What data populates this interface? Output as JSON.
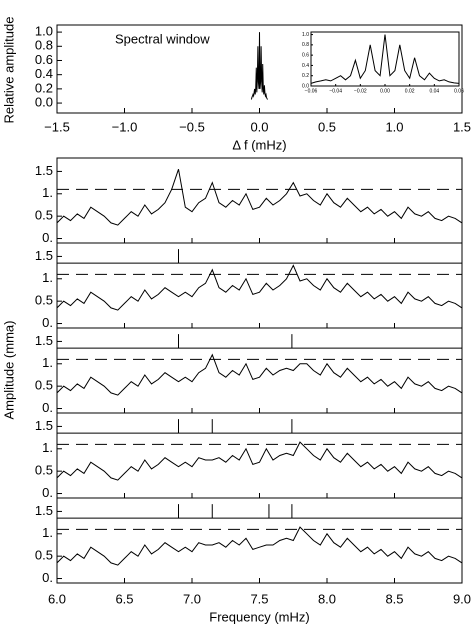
{
  "chart_data": [
    {
      "type": "line",
      "annotation": "Spectral window",
      "xlabel": "Δ f (mHz)",
      "ylabel": "Relative amplitude",
      "x": [
        -0.06,
        -0.056,
        -0.052,
        -0.048,
        -0.044,
        -0.04,
        -0.036,
        -0.032,
        -0.028,
        -0.024,
        -0.02,
        -0.016,
        -0.012,
        -0.008,
        -0.004,
        0,
        0.004,
        0.008,
        0.012,
        0.016,
        0.02,
        0.024,
        0.028,
        0.032,
        0.036,
        0.04,
        0.044,
        0.048,
        0.052,
        0.056,
        0.06
      ],
      "values": [
        0.05,
        0.08,
        0.1,
        0.12,
        0.1,
        0.15,
        0.2,
        0.12,
        0.2,
        0.5,
        0.15,
        0.3,
        0.8,
        0.3,
        0.2,
        1.0,
        0.2,
        0.3,
        0.8,
        0.3,
        0.15,
        0.55,
        0.2,
        0.12,
        0.25,
        0.15,
        0.1,
        0.12,
        0.08,
        0.06,
        0.05
      ],
      "xlim": [
        -1.5,
        1.5
      ],
      "xticks": [
        {
          "value": -1.5,
          "label": "−1.5"
        },
        {
          "value": -1,
          "label": "−1.0"
        },
        {
          "value": -0.5,
          "label": "−0.5"
        },
        {
          "value": 0,
          "label": "0.0"
        },
        0.5,
        {
          "value": 1,
          "label": "1.0"
        },
        1.5
      ],
      "ylim": [
        -0.14,
        1.1
      ],
      "yticks": [
        {
          "value": 0,
          "label": "0.0"
        },
        0.2,
        0.4,
        0.6,
        0.8,
        {
          "value": 1,
          "label": "1.0"
        }
      ],
      "inset": {
        "xlim": [
          -0.06,
          0.06
        ],
        "xticks": [
          {
            "value": -0.06,
            "label": "−0.06"
          },
          {
            "value": -0.04,
            "label": "−0.04"
          },
          {
            "value": -0.02,
            "label": "−0.02"
          },
          {
            "value": 0,
            "label": "0.00"
          },
          0.02,
          0.04,
          0.06
        ],
        "ylim": [
          0,
          1.05
        ],
        "yticks": [
          {
            "value": 0,
            "label": "0.0"
          },
          0.2,
          0.4,
          0.6,
          0.8,
          {
            "value": 1,
            "label": "1.0"
          }
        ]
      }
    },
    {
      "type": "line",
      "xlabel": "Frequency (mHz)",
      "ylabel": "Amplitude (mma)",
      "x": [
        6.0,
        6.05,
        6.1,
        6.15,
        6.2,
        6.25,
        6.3,
        6.35,
        6.4,
        6.45,
        6.5,
        6.55,
        6.6,
        6.65,
        6.7,
        6.75,
        6.8,
        6.85,
        6.9,
        6.95,
        7.0,
        7.05,
        7.1,
        7.15,
        7.2,
        7.25,
        7.3,
        7.35,
        7.4,
        7.45,
        7.5,
        7.55,
        7.6,
        7.65,
        7.7,
        7.75,
        7.8,
        7.85,
        7.9,
        7.95,
        8.0,
        8.05,
        8.1,
        8.15,
        8.2,
        8.25,
        8.3,
        8.35,
        8.4,
        8.45,
        8.5,
        8.55,
        8.6,
        8.65,
        8.7,
        8.75,
        8.8,
        8.85,
        8.9,
        8.95,
        9.0
      ],
      "xlim": [
        6,
        9
      ],
      "xticks": [
        {
          "value": 6,
          "label": "6.0"
        },
        6.5,
        {
          "value": 7,
          "label": "7.0"
        },
        7.5,
        {
          "value": 8,
          "label": "8.0"
        },
        8.5,
        {
          "value": 9,
          "label": "9.0"
        }
      ],
      "ylim": [
        -0.1,
        1.8
      ],
      "yticks": [
        {
          "value": 0,
          "label": "0."
        },
        0.5,
        {
          "value": 1,
          "label": "1."
        },
        1.5
      ],
      "threshold": 1.1,
      "marker_line": 1.35,
      "panels": [
        {
          "removed": [],
          "values": [
            0.35,
            0.5,
            0.4,
            0.55,
            0.45,
            0.7,
            0.6,
            0.5,
            0.35,
            0.3,
            0.45,
            0.6,
            0.5,
            0.75,
            0.55,
            0.65,
            0.8,
            1.1,
            1.55,
            0.7,
            0.6,
            0.8,
            0.9,
            1.25,
            0.8,
            0.7,
            0.85,
            0.75,
            1.0,
            0.65,
            0.7,
            0.9,
            0.75,
            0.85,
            1.0,
            1.25,
            0.95,
            1.0,
            0.85,
            0.75,
            1.0,
            0.8,
            0.7,
            0.9,
            0.75,
            0.6,
            0.7,
            0.55,
            0.65,
            0.5,
            0.6,
            0.45,
            0.7,
            0.55,
            0.5,
            0.6,
            0.45,
            0.4,
            0.5,
            0.45,
            0.35
          ]
        },
        {
          "removed": [
            6.9
          ],
          "values": [
            0.35,
            0.5,
            0.4,
            0.55,
            0.45,
            0.7,
            0.6,
            0.5,
            0.35,
            0.3,
            0.45,
            0.6,
            0.5,
            0.75,
            0.55,
            0.65,
            0.8,
            0.7,
            0.6,
            0.7,
            0.6,
            0.8,
            0.9,
            1.2,
            0.8,
            0.7,
            0.85,
            0.75,
            1.0,
            0.65,
            0.7,
            0.9,
            0.75,
            0.85,
            1.0,
            1.3,
            0.95,
            1.0,
            0.85,
            0.75,
            1.0,
            0.8,
            0.7,
            0.9,
            0.75,
            0.6,
            0.7,
            0.55,
            0.65,
            0.5,
            0.6,
            0.45,
            0.7,
            0.55,
            0.5,
            0.6,
            0.45,
            0.4,
            0.5,
            0.45,
            0.35
          ]
        },
        {
          "removed": [
            6.9,
            7.74
          ],
          "values": [
            0.35,
            0.5,
            0.4,
            0.55,
            0.45,
            0.7,
            0.6,
            0.5,
            0.35,
            0.3,
            0.45,
            0.6,
            0.5,
            0.75,
            0.55,
            0.65,
            0.8,
            0.7,
            0.6,
            0.7,
            0.6,
            0.8,
            0.9,
            1.2,
            0.8,
            0.7,
            0.85,
            0.75,
            1.0,
            0.65,
            0.7,
            0.9,
            0.75,
            0.85,
            0.9,
            0.85,
            1.0,
            1.0,
            0.85,
            0.75,
            1.0,
            0.8,
            0.7,
            0.9,
            0.75,
            0.6,
            0.7,
            0.55,
            0.65,
            0.5,
            0.6,
            0.45,
            0.7,
            0.55,
            0.5,
            0.6,
            0.45,
            0.4,
            0.5,
            0.45,
            0.35
          ]
        },
        {
          "removed": [
            6.9,
            7.15,
            7.74
          ],
          "values": [
            0.35,
            0.5,
            0.4,
            0.55,
            0.45,
            0.7,
            0.6,
            0.5,
            0.35,
            0.3,
            0.45,
            0.6,
            0.5,
            0.75,
            0.55,
            0.65,
            0.8,
            0.7,
            0.6,
            0.7,
            0.6,
            0.8,
            0.75,
            0.75,
            0.8,
            0.7,
            0.85,
            0.75,
            1.0,
            0.65,
            0.7,
            1.0,
            0.75,
            0.85,
            0.9,
            0.85,
            1.15,
            1.0,
            0.85,
            0.75,
            1.0,
            0.8,
            0.7,
            0.9,
            0.75,
            0.6,
            0.7,
            0.55,
            0.65,
            0.5,
            0.6,
            0.45,
            0.7,
            0.55,
            0.5,
            0.6,
            0.45,
            0.4,
            0.5,
            0.45,
            0.35
          ]
        },
        {
          "removed": [
            6.9,
            7.15,
            7.57,
            7.74
          ],
          "values": [
            0.35,
            0.5,
            0.4,
            0.55,
            0.45,
            0.7,
            0.6,
            0.5,
            0.35,
            0.3,
            0.45,
            0.6,
            0.5,
            0.75,
            0.55,
            0.65,
            0.8,
            0.7,
            0.6,
            0.7,
            0.6,
            0.8,
            0.75,
            0.75,
            0.8,
            0.7,
            0.85,
            0.75,
            0.9,
            0.65,
            0.7,
            0.75,
            0.75,
            0.85,
            0.9,
            0.85,
            1.15,
            1.0,
            0.85,
            0.75,
            1.0,
            0.8,
            0.7,
            0.9,
            0.75,
            0.6,
            0.7,
            0.55,
            0.65,
            0.5,
            0.6,
            0.45,
            0.7,
            0.55,
            0.5,
            0.6,
            0.45,
            0.4,
            0.5,
            0.45,
            0.35
          ]
        }
      ]
    }
  ]
}
